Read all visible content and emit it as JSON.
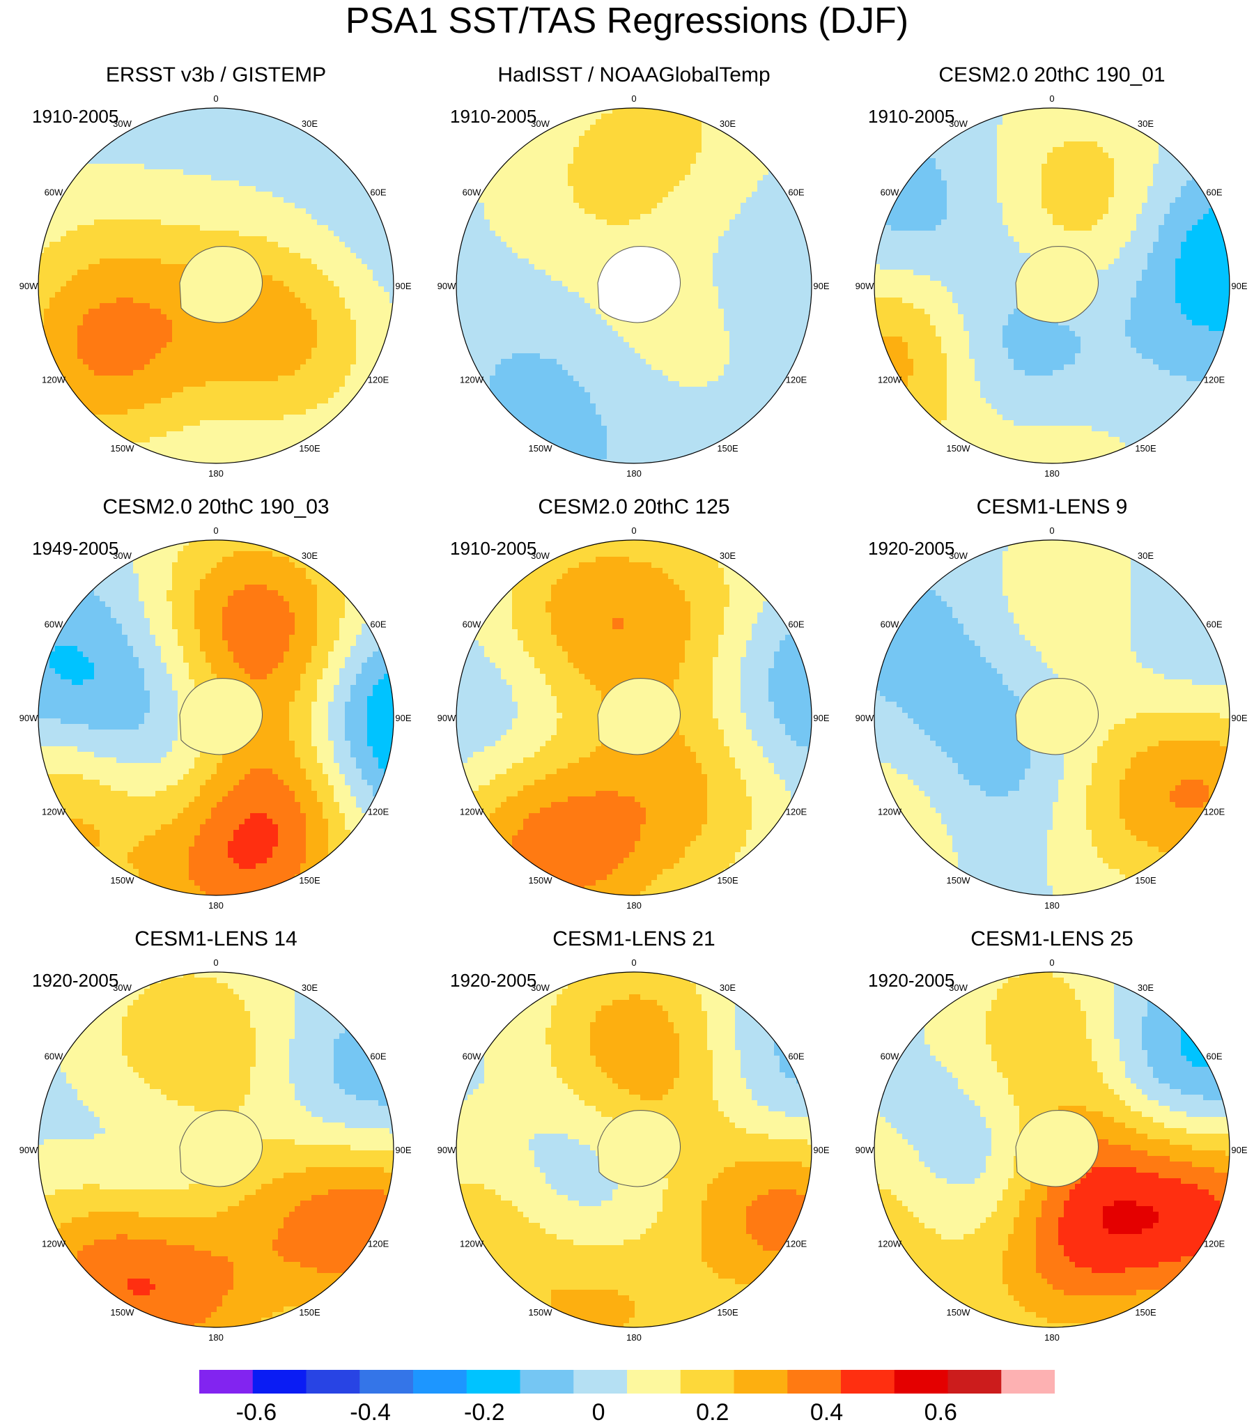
{
  "title": "PSA1 SST/TAS Regressions (DJF)",
  "longitude_labels": [
    "0",
    "30E",
    "60E",
    "90E",
    "120E",
    "150E",
    "180",
    "150W",
    "120W",
    "90W",
    "60W",
    "30W"
  ],
  "panels": [
    {
      "title": "ERSST v3b / GISTEMP",
      "period": "1910-2005",
      "blobs": [
        {
          "lon": 240,
          "r": 0.75,
          "v": 0.16
        },
        {
          "lon": 235,
          "r": 0.7,
          "v": 0.2
        },
        {
          "lon": 120,
          "r": 0.45,
          "v": 0.14
        },
        {
          "lon": 125,
          "r": 0.38,
          "v": 0.18
        },
        {
          "lon": 300,
          "r": 0.6,
          "v": 0.12
        },
        {
          "lon": 200,
          "r": 0.62,
          "v": -0.06
        },
        {
          "lon": 320,
          "r": 0.7,
          "v": -0.06
        },
        {
          "lon": 75,
          "r": 0.8,
          "v": -0.08
        }
      ]
    },
    {
      "title": "HadISST / NOAAGlobalTemp",
      "period": "1910-2005",
      "blobs": [
        {
          "lon": 200,
          "r": 0.8,
          "v": -0.08
        },
        {
          "lon": 230,
          "r": 0.6,
          "v": -0.06
        },
        {
          "lon": 160,
          "r": 0.3,
          "v": 0.12
        },
        {
          "lon": 15,
          "r": 0.88,
          "v": 0.14
        },
        {
          "lon": 330,
          "r": 0.6,
          "v": 0.1
        },
        {
          "lon": 70,
          "r": 0.55,
          "v": -0.05
        }
      ]
    },
    {
      "title": "CESM2.0 20thC 190_01",
      "period": "1910-2005",
      "blobs": [
        {
          "lon": 245,
          "r": 0.85,
          "v": 0.45
        },
        {
          "lon": 215,
          "r": 0.55,
          "v": -0.4
        },
        {
          "lon": 190,
          "r": 0.85,
          "v": 0.22
        },
        {
          "lon": 20,
          "r": 0.55,
          "v": 0.18
        },
        {
          "lon": 80,
          "r": 0.88,
          "v": -0.3
        },
        {
          "lon": 290,
          "r": 0.85,
          "v": -0.16
        },
        {
          "lon": 60,
          "r": 0.4,
          "v": 0.1
        }
      ]
    },
    {
      "title": "CESM2.0 20thC 190_03",
      "period": "1949-2005",
      "blobs": [
        {
          "lon": 240,
          "r": 0.85,
          "v": 0.42
        },
        {
          "lon": 215,
          "r": 0.45,
          "v": -0.36
        },
        {
          "lon": 150,
          "r": 0.55,
          "v": 0.42
        },
        {
          "lon": 15,
          "r": 0.6,
          "v": 0.28
        },
        {
          "lon": 60,
          "r": 0.55,
          "v": 0.25
        },
        {
          "lon": 90,
          "r": 0.9,
          "v": -0.42
        },
        {
          "lon": 280,
          "r": 0.8,
          "v": -0.26
        },
        {
          "lon": 180,
          "r": 0.85,
          "v": 0.28
        }
      ]
    },
    {
      "title": "CESM2.0 20thC 125",
      "period": "1910-2005",
      "blobs": [
        {
          "lon": 230,
          "r": 0.8,
          "v": 0.36
        },
        {
          "lon": 255,
          "r": 0.7,
          "v": -0.26
        },
        {
          "lon": 335,
          "r": 0.6,
          "v": 0.3
        },
        {
          "lon": 45,
          "r": 0.7,
          "v": 0.22
        },
        {
          "lon": 135,
          "r": 0.5,
          "v": 0.24
        },
        {
          "lon": 75,
          "r": 0.85,
          "v": -0.28
        },
        {
          "lon": 200,
          "r": 0.9,
          "v": 0.2
        }
      ]
    },
    {
      "title": "CESM1-LENS 9",
      "period": "1920-2005",
      "blobs": [
        {
          "lon": 235,
          "r": 0.8,
          "v": 0.24
        },
        {
          "lon": 225,
          "r": 0.45,
          "v": -0.32
        },
        {
          "lon": 150,
          "r": 0.5,
          "v": 0.18
        },
        {
          "lon": 110,
          "r": 0.95,
          "v": 0.36
        },
        {
          "lon": 80,
          "r": 0.85,
          "v": -0.16
        },
        {
          "lon": 300,
          "r": 0.8,
          "v": -0.12
        },
        {
          "lon": 0,
          "r": 0.55,
          "v": 0.14
        }
      ]
    },
    {
      "title": "CESM1-LENS 14",
      "period": "1920-2005",
      "blobs": [
        {
          "lon": 225,
          "r": 0.82,
          "v": 0.44
        },
        {
          "lon": 235,
          "r": 0.4,
          "v": -0.32
        },
        {
          "lon": 190,
          "r": 0.85,
          "v": 0.22
        },
        {
          "lon": 110,
          "r": 0.95,
          "v": 0.5
        },
        {
          "lon": 80,
          "r": 0.88,
          "v": -0.28
        },
        {
          "lon": 345,
          "r": 0.55,
          "v": 0.26
        },
        {
          "lon": 150,
          "r": 0.35,
          "v": 0.16
        }
      ]
    },
    {
      "title": "CESM1-LENS 21",
      "period": "1920-2005",
      "blobs": [
        {
          "lon": 240,
          "r": 0.85,
          "v": 0.3
        },
        {
          "lon": 230,
          "r": 0.45,
          "v": -0.3
        },
        {
          "lon": 190,
          "r": 0.85,
          "v": 0.28
        },
        {
          "lon": 110,
          "r": 0.95,
          "v": 0.42
        },
        {
          "lon": 70,
          "r": 0.85,
          "v": -0.24
        },
        {
          "lon": 0,
          "r": 0.6,
          "v": 0.28
        },
        {
          "lon": 60,
          "r": 0.35,
          "v": 0.14
        }
      ]
    },
    {
      "title": "CESM1-LENS 25",
      "period": "1920-2005",
      "blobs": [
        {
          "lon": 245,
          "r": 0.85,
          "v": 0.34
        },
        {
          "lon": 240,
          "r": 0.42,
          "v": -0.5
        },
        {
          "lon": 180,
          "r": 0.6,
          "v": 0.3
        },
        {
          "lon": 110,
          "r": 0.95,
          "v": 0.44
        },
        {
          "lon": 60,
          "r": 0.85,
          "v": -0.3
        },
        {
          "lon": 0,
          "r": 0.62,
          "v": 0.24
        },
        {
          "lon": 150,
          "r": 0.2,
          "v": 0.4
        }
      ]
    }
  ],
  "colorbar": {
    "boundaries": [
      -0.7,
      -0.6,
      -0.5,
      -0.4,
      -0.3,
      -0.2,
      -0.1,
      0,
      0.1,
      0.2,
      0.3,
      0.4,
      0.5,
      0.6,
      0.7,
      0.8
    ],
    "colors": [
      "#8224f0",
      "#0a1cf4",
      "#2844e4",
      "#3475e8",
      "#1d96ff",
      "#00c3ff",
      "#75c6f3",
      "#b5e0f3",
      "#fdf89e",
      "#fdd83a",
      "#fdaf10",
      "#ff7a12",
      "#ff2f10",
      "#e40000",
      "#cc1c1c",
      "#fdb1b2"
    ],
    "tick_labels": [
      {
        "value": -0.6,
        "label": "-0.6"
      },
      {
        "value": -0.4,
        "label": "-0.4"
      },
      {
        "value": -0.2,
        "label": "-0.2"
      },
      {
        "value": 0,
        "label": "0"
      },
      {
        "value": 0.2,
        "label": "0.2"
      },
      {
        "value": 0.4,
        "label": "0.4"
      },
      {
        "value": 0.6,
        "label": "0.6"
      }
    ]
  },
  "chart_data": {
    "type": "heatmap",
    "title": "PSA1 SST/TAS Regressions (DJF)",
    "projection": "south polar stereographic",
    "panels": [
      "ERSST v3b / GISTEMP",
      "HadISST / NOAAGlobalTemp",
      "CESM2.0 20thC 190_01",
      "CESM2.0 20thC 190_03",
      "CESM2.0 20thC 125",
      "CESM1-LENS 9",
      "CESM1-LENS 14",
      "CESM1-LENS 21",
      "CESM1-LENS 25"
    ],
    "periods": [
      "1910-2005",
      "1910-2005",
      "1910-2005",
      "1949-2005",
      "1910-2005",
      "1920-2005",
      "1920-2005",
      "1920-2005",
      "1920-2005"
    ],
    "levels": [
      -0.7,
      -0.6,
      -0.5,
      -0.4,
      -0.3,
      -0.2,
      -0.1,
      0,
      0.1,
      0.2,
      0.3,
      0.4,
      0.5,
      0.6,
      0.7,
      0.8
    ],
    "colorbar_ticks": [
      -0.6,
      -0.4,
      -0.2,
      0,
      0.2,
      0.4,
      0.6
    ]
  }
}
